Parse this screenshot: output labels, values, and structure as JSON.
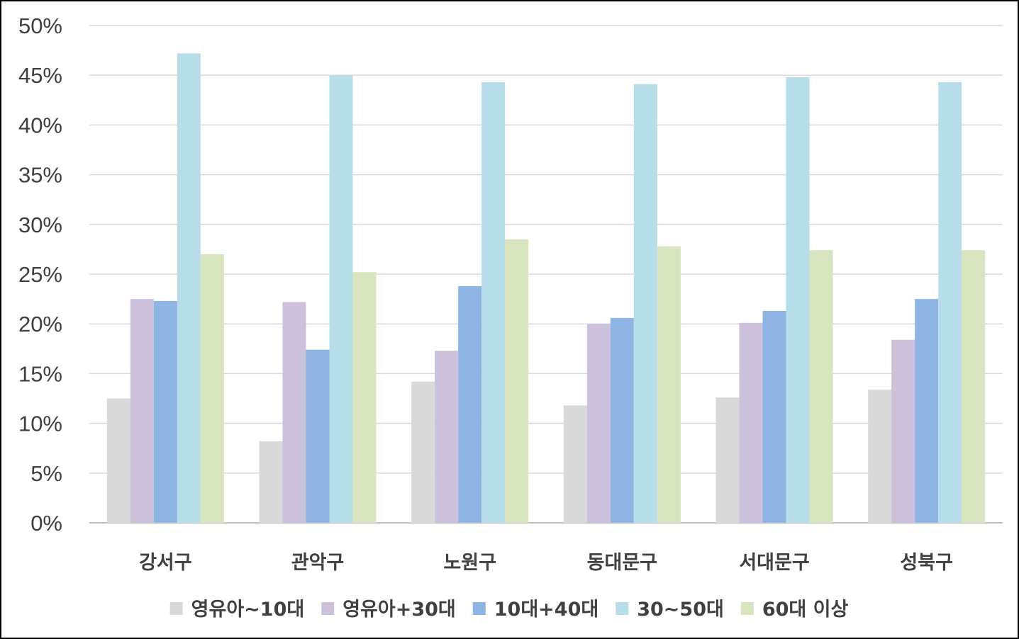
{
  "chart_data": {
    "type": "bar",
    "title": "",
    "xlabel": "",
    "ylabel": "",
    "categories": [
      "강서구",
      "관악구",
      "노원구",
      "동대문구",
      "서대문구",
      "성북구"
    ],
    "series": [
      {
        "name": "영유아~10대",
        "color": "#d9d9d9",
        "values": [
          12.5,
          8.2,
          14.2,
          11.8,
          12.6,
          13.4
        ]
      },
      {
        "name": "영유아+30대",
        "color": "#ccc1da",
        "values": [
          22.5,
          22.2,
          17.3,
          20.0,
          20.1,
          18.4
        ]
      },
      {
        "name": "10대+40대",
        "color": "#8eb4e3",
        "values": [
          22.3,
          17.4,
          23.8,
          20.6,
          21.3,
          22.5
        ]
      },
      {
        "name": "30~50대",
        "color": "#b7dee8",
        "values": [
          47.2,
          45.0,
          44.3,
          44.1,
          44.8,
          44.3
        ]
      },
      {
        "name": "60대 이상",
        "color": "#d7e4bd",
        "values": [
          27.0,
          25.2,
          28.5,
          27.8,
          27.4,
          27.4
        ]
      }
    ],
    "ylim": [
      0,
      50
    ],
    "yticks": [
      "0%",
      "5%",
      "10%",
      "15%",
      "20%",
      "25%",
      "30%",
      "35%",
      "40%",
      "45%",
      "50%"
    ],
    "grid": true,
    "legend_position": "bottom"
  }
}
